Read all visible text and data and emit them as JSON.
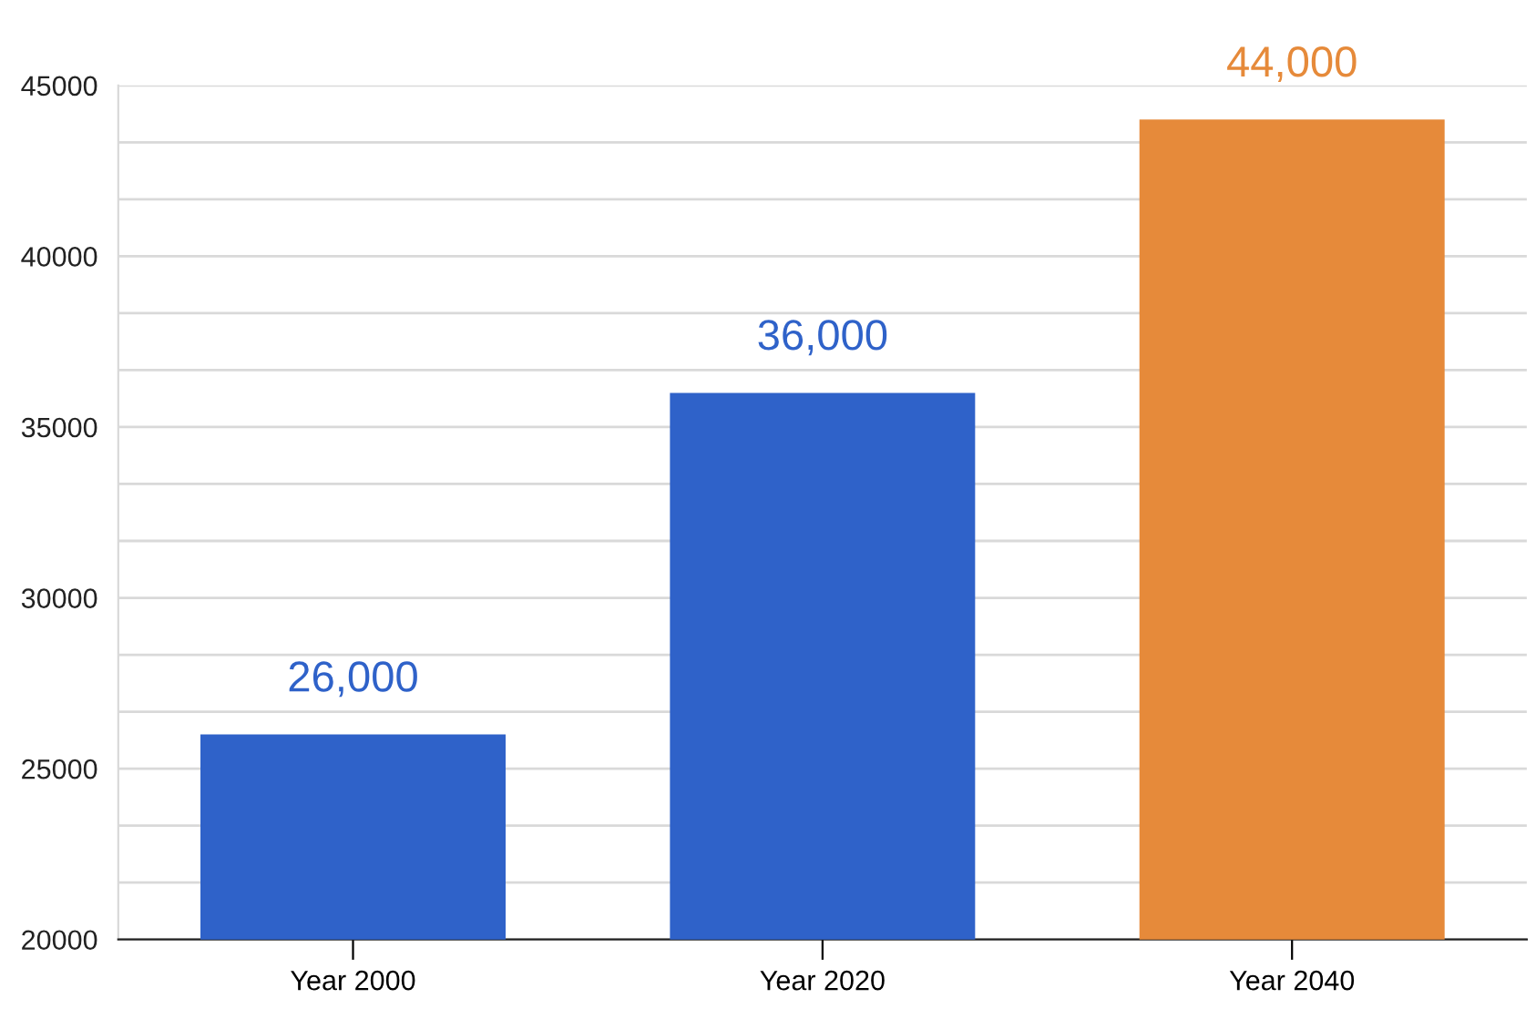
{
  "chart_data": {
    "type": "bar",
    "categories": [
      "Year 2000",
      "Year 2020",
      "Year 2040"
    ],
    "values": [
      26000,
      36000,
      44000
    ],
    "colors": [
      "#2f62c9",
      "#2f62c9",
      "#e68a3a"
    ],
    "value_labels": [
      "26,000",
      "36,000",
      "44,000"
    ],
    "ylim": [
      20000,
      45000
    ],
    "yticks": [
      20000,
      {
        "value": 21666.7,
        "label": null
      },
      {
        "value": 23333.3,
        "label": null
      },
      25000,
      {
        "value": 26666.7,
        "label": null
      },
      {
        "value": 28333.3,
        "label": null
      },
      30000,
      {
        "value": 31666.7,
        "label": null
      },
      {
        "value": 33333.3,
        "label": null
      },
      35000,
      {
        "value": 36666.7,
        "label": null
      },
      {
        "value": 38333.3,
        "label": null
      },
      40000,
      {
        "value": 41666.7,
        "label": null
      },
      {
        "value": 43333.3,
        "label": null
      },
      45000
    ],
    "grid": "y",
    "legend": false
  }
}
